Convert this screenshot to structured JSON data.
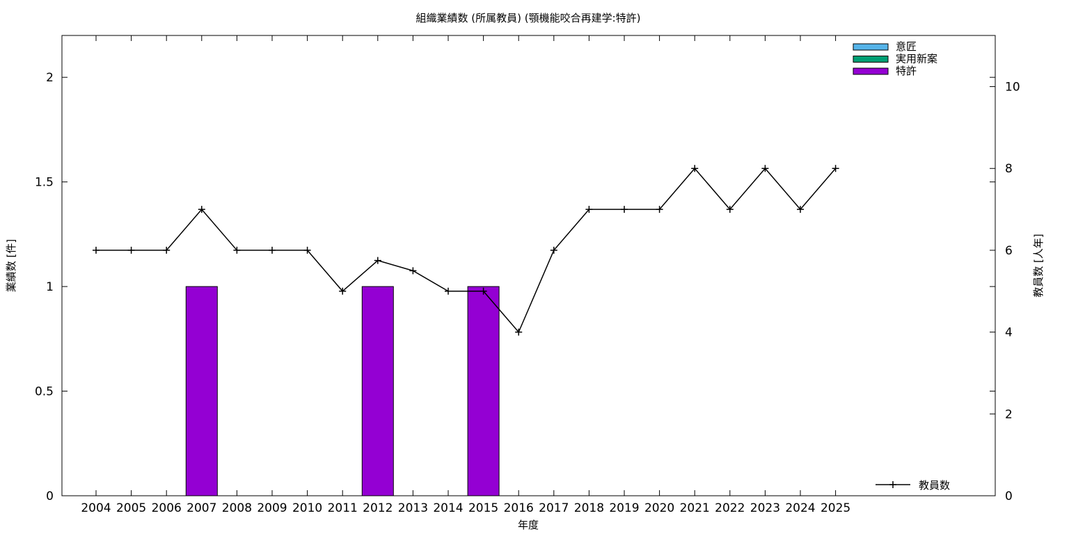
{
  "chart_data": {
    "type": "bar+line",
    "title": "組織業績数 (所属教員) (顎機能咬合再建学:特許)",
    "xlabel": "年度",
    "ylabel": "業績数 [件]",
    "y2label": "教員数 [人年]",
    "categories": [
      "2004",
      "2005",
      "2006",
      "2007",
      "2008",
      "2009",
      "2010",
      "2011",
      "2012",
      "2013",
      "2014",
      "2015",
      "2016",
      "2017",
      "2018",
      "2019",
      "2020",
      "2021",
      "2022",
      "2023",
      "2024",
      "2025"
    ],
    "ylim": [
      0,
      2.2
    ],
    "y_ticks": [
      "0",
      "0.5",
      "1",
      "1.5",
      "2"
    ],
    "y2lim": [
      0,
      11.25
    ],
    "y2_ticks": [
      "0",
      "2",
      "4",
      "6",
      "8",
      "10"
    ],
    "bar_series": [
      {
        "name": "意匠",
        "color": "#56b4e9",
        "values": [
          0,
          0,
          0,
          0,
          0,
          0,
          0,
          0,
          0,
          0,
          0,
          0,
          0,
          0,
          0,
          0,
          0,
          0,
          0,
          0,
          0,
          0
        ]
      },
      {
        "name": "実用新案",
        "color": "#009e73",
        "values": [
          0,
          0,
          0,
          0,
          0,
          0,
          0,
          0,
          0,
          0,
          0,
          0,
          0,
          0,
          0,
          0,
          0,
          0,
          0,
          0,
          0,
          0
        ]
      },
      {
        "name": "特許",
        "color": "#9400d3",
        "values": [
          0,
          0,
          0,
          1,
          0,
          0,
          0,
          0,
          1,
          0,
          0,
          1,
          0,
          0,
          0,
          0,
          0,
          0,
          0,
          0,
          0,
          0
        ]
      }
    ],
    "line_series": {
      "name": "教員数",
      "color": "#000000",
      "values": [
        6,
        6,
        6,
        7,
        6,
        6,
        6,
        5,
        5.75,
        5.5,
        5,
        5,
        4,
        6,
        7,
        7,
        7,
        8,
        7,
        8,
        7,
        8
      ]
    },
    "bar_legend_position": "top-right",
    "line_legend_position": "bottom-right",
    "grid": false
  }
}
